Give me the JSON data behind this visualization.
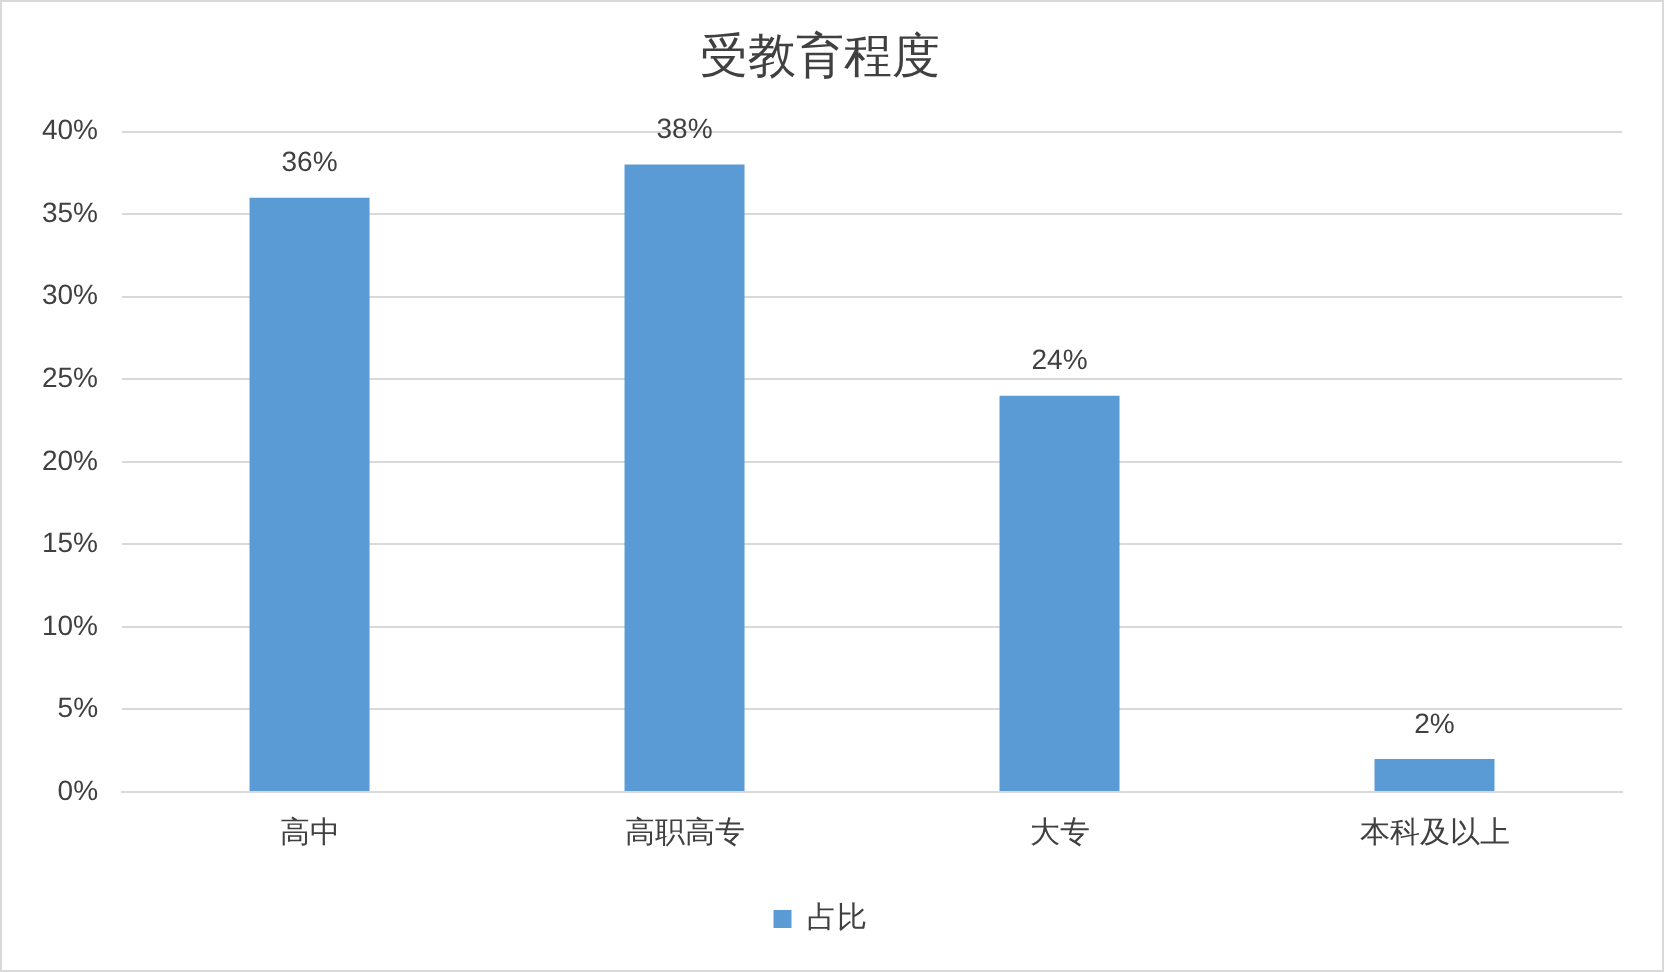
{
  "chart_data": {
    "type": "bar",
    "title": "受教育程度",
    "categories": [
      "高中",
      "高职高专",
      "大专",
      "本科及以上"
    ],
    "series": [
      {
        "name": "占比",
        "color": "#5b9bd5",
        "values": [
          36,
          38,
          24,
          2
        ],
        "value_labels": [
          "36%",
          "38%",
          "24%",
          "2%"
        ]
      }
    ],
    "ylim": [
      0,
      40
    ],
    "yticks": [
      {
        "value": 0,
        "label": "0%"
      },
      {
        "value": 5,
        "label": "5%"
      },
      {
        "value": 10,
        "label": "10%"
      },
      {
        "value": 15,
        "label": "15%"
      },
      {
        "value": 20,
        "label": "20%"
      },
      {
        "value": 25,
        "label": "25%"
      },
      {
        "value": 30,
        "label": "30%"
      },
      {
        "value": 35,
        "label": "35%"
      },
      {
        "value": 40,
        "label": "40%"
      }
    ],
    "grid": "y",
    "legend": "bottom"
  }
}
